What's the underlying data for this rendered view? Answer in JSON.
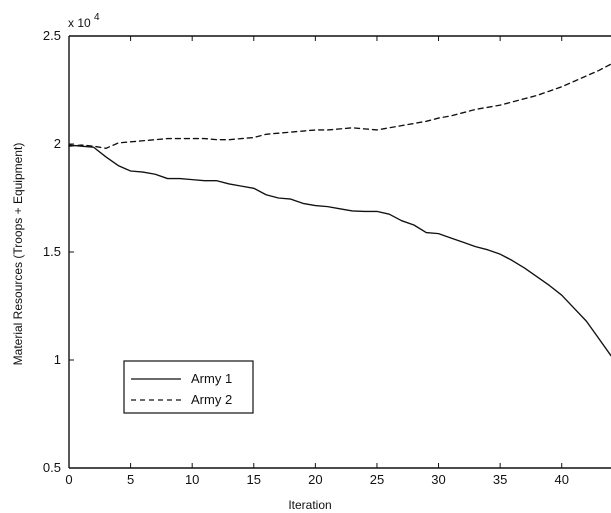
{
  "chart_data": {
    "type": "line",
    "title": "",
    "xlabel": "Iteration",
    "ylabel": "Material Resources (Troops + Equipment)",
    "y_exponent_label": "x 10",
    "y_exponent_power": "4",
    "xlim": [
      0,
      44
    ],
    "ylim": [
      0.5,
      2.5
    ],
    "x_ticks": [
      0,
      5,
      10,
      15,
      20,
      25,
      30,
      35,
      40
    ],
    "x_tick_labels": [
      "0",
      "5",
      "10",
      "15",
      "20",
      "25",
      "30",
      "35",
      "40"
    ],
    "y_ticks": [
      0.5,
      1,
      1.5,
      2,
      2.5
    ],
    "y_tick_labels": [
      "0.5",
      "1",
      "1.5",
      "2",
      "2.5"
    ],
    "grid": false,
    "legend_position": "lower-left",
    "series": [
      {
        "name": "Army 1",
        "line_style": "solid",
        "color": "#111111",
        "points": [
          [
            0,
            1.995
          ],
          [
            1,
            1.99
          ],
          [
            2,
            1.985
          ],
          [
            3,
            1.94
          ],
          [
            4,
            1.9
          ],
          [
            5,
            1.875
          ],
          [
            6,
            1.87
          ],
          [
            7,
            1.86
          ],
          [
            8,
            1.84
          ],
          [
            9,
            1.84
          ],
          [
            10,
            1.835
          ],
          [
            11,
            1.83
          ],
          [
            12,
            1.83
          ],
          [
            13,
            1.815
          ],
          [
            14,
            1.805
          ],
          [
            15,
            1.795
          ],
          [
            16,
            1.765
          ],
          [
            17,
            1.75
          ],
          [
            18,
            1.745
          ],
          [
            19,
            1.725
          ],
          [
            20,
            1.715
          ],
          [
            21,
            1.71
          ],
          [
            22,
            1.7
          ],
          [
            23,
            1.69
          ],
          [
            24,
            1.688
          ],
          [
            25,
            1.688
          ],
          [
            26,
            1.675
          ],
          [
            27,
            1.645
          ],
          [
            28,
            1.625
          ],
          [
            29,
            1.59
          ],
          [
            30,
            1.585
          ],
          [
            31,
            1.565
          ],
          [
            32,
            1.545
          ],
          [
            33,
            1.525
          ],
          [
            34,
            1.51
          ],
          [
            35,
            1.49
          ],
          [
            36,
            1.46
          ],
          [
            37,
            1.425
          ],
          [
            38,
            1.385
          ],
          [
            39,
            1.345
          ],
          [
            40,
            1.3
          ],
          [
            41,
            1.24
          ],
          [
            42,
            1.18
          ],
          [
            43,
            1.1
          ],
          [
            44,
            1.02
          ]
        ]
      },
      {
        "name": "Army 2",
        "line_style": "dashed",
        "color": "#111111",
        "points": [
          [
            0,
            1.99
          ],
          [
            1,
            1.995
          ],
          [
            2,
            1.99
          ],
          [
            3,
            1.98
          ],
          [
            4,
            2.005
          ],
          [
            5,
            2.01
          ],
          [
            6,
            2.015
          ],
          [
            7,
            2.02
          ],
          [
            8,
            2.025
          ],
          [
            9,
            2.025
          ],
          [
            10,
            2.025
          ],
          [
            11,
            2.025
          ],
          [
            12,
            2.02
          ],
          [
            13,
            2.02
          ],
          [
            14,
            2.025
          ],
          [
            15,
            2.03
          ],
          [
            16,
            2.045
          ],
          [
            17,
            2.05
          ],
          [
            18,
            2.055
          ],
          [
            19,
            2.06
          ],
          [
            20,
            2.065
          ],
          [
            21,
            2.065
          ],
          [
            22,
            2.07
          ],
          [
            23,
            2.075
          ],
          [
            24,
            2.07
          ],
          [
            25,
            2.065
          ],
          [
            26,
            2.075
          ],
          [
            27,
            2.085
          ],
          [
            28,
            2.095
          ],
          [
            29,
            2.105
          ],
          [
            30,
            2.12
          ],
          [
            31,
            2.13
          ],
          [
            32,
            2.145
          ],
          [
            33,
            2.16
          ],
          [
            34,
            2.17
          ],
          [
            35,
            2.18
          ],
          [
            36,
            2.195
          ],
          [
            37,
            2.21
          ],
          [
            38,
            2.225
          ],
          [
            39,
            2.245
          ],
          [
            40,
            2.265
          ],
          [
            41,
            2.29
          ],
          [
            42,
            2.315
          ],
          [
            43,
            2.34
          ],
          [
            44,
            2.37
          ]
        ]
      }
    ]
  }
}
